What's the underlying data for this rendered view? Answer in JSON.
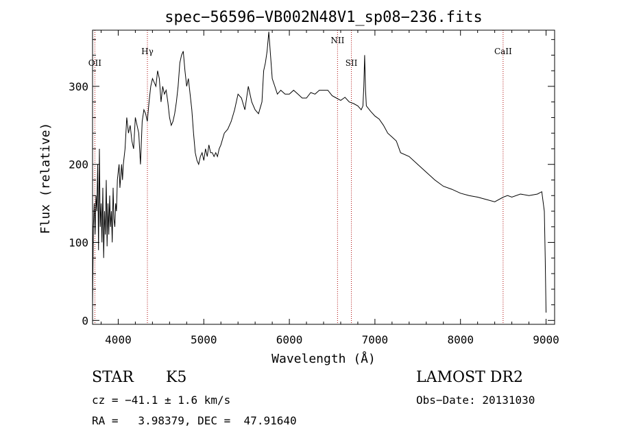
{
  "chart_data": {
    "type": "line",
    "title": "spec−56596−VB002N48V1_sp08−236.fits",
    "xlabel": "Wavelength (Å)",
    "ylabel": "Flux (relative)",
    "xlim": [
      3700,
      9100
    ],
    "ylim": [
      -5,
      372
    ],
    "xticks": [
      4000,
      5000,
      6000,
      7000,
      8000,
      9000
    ],
    "yticks": [
      0,
      100,
      200,
      300
    ],
    "line_color": "#000000",
    "marker_color": "#aa0000",
    "grid": false,
    "spectral_lines": [
      {
        "name": "OII",
        "wavelength": 3727
      },
      {
        "name": "Hγ",
        "wavelength": 4341
      },
      {
        "name": "NII",
        "wavelength": 6563
      },
      {
        "name": "SII",
        "wavelength": 6725
      },
      {
        "name": "CaII",
        "wavelength": 8498
      }
    ],
    "series": [
      {
        "x": [
          3700,
          3710,
          3720,
          3730,
          3740,
          3750,
          3760,
          3770,
          3780,
          3790,
          3800,
          3810,
          3820,
          3830,
          3840,
          3850,
          3860,
          3870,
          3880,
          3890,
          3900,
          3910,
          3920,
          3930,
          3940,
          3950,
          3960,
          3970,
          3980,
          3990,
          4000,
          4010,
          4020,
          4030,
          4040,
          4050,
          4060,
          4080,
          4100,
          4120,
          4140,
          4160,
          4180,
          4200,
          4220,
          4240,
          4260,
          4280,
          4300,
          4320,
          4340,
          4360,
          4380,
          4400,
          4420,
          4440,
          4460,
          4480,
          4500,
          4520,
          4540,
          4560,
          4580,
          4600,
          4620,
          4640,
          4660,
          4680,
          4700,
          4720,
          4740,
          4760,
          4780,
          4800,
          4820,
          4840,
          4860,
          4880,
          4900,
          4920,
          4940,
          4960,
          4980,
          5000,
          5020,
          5040,
          5060,
          5080,
          5100,
          5120,
          5140,
          5160,
          5180,
          5200,
          5240,
          5280,
          5320,
          5360,
          5400,
          5440,
          5480,
          5520,
          5560,
          5600,
          5640,
          5680,
          5700,
          5720,
          5740,
          5760,
          5780,
          5800,
          5830,
          5860,
          5900,
          5950,
          6000,
          6050,
          6100,
          6150,
          6200,
          6250,
          6300,
          6350,
          6400,
          6450,
          6500,
          6550,
          6600,
          6650,
          6700,
          6750,
          6800,
          6840,
          6860,
          6870,
          6880,
          6890,
          6900,
          6950,
          7000,
          7050,
          7100,
          7150,
          7200,
          7250,
          7300,
          7400,
          7500,
          7600,
          7650,
          7700,
          7800,
          7900,
          8000,
          8100,
          8200,
          8300,
          8400,
          8500,
          8550,
          8600,
          8700,
          8800,
          8900,
          8950,
          8980,
          8990,
          9000
        ],
        "y": [
          20,
          120,
          150,
          110,
          160,
          140,
          200,
          90,
          220,
          120,
          150,
          100,
          170,
          80,
          140,
          110,
          180,
          95,
          150,
          110,
          160,
          120,
          140,
          100,
          170,
          130,
          120,
          150,
          140,
          180,
          190,
          200,
          170,
          185,
          200,
          180,
          200,
          220,
          260,
          240,
          250,
          230,
          220,
          260,
          250,
          240,
          200,
          255,
          270,
          265,
          255,
          280,
          300,
          310,
          305,
          300,
          320,
          310,
          280,
          300,
          290,
          295,
          280,
          260,
          250,
          255,
          265,
          280,
          300,
          330,
          340,
          345,
          320,
          300,
          310,
          290,
          270,
          240,
          215,
          205,
          200,
          210,
          215,
          205,
          220,
          210,
          225,
          215,
          215,
          210,
          215,
          210,
          220,
          225,
          240,
          245,
          255,
          270,
          290,
          285,
          270,
          300,
          280,
          270,
          265,
          280,
          320,
          330,
          345,
          370,
          340,
          310,
          300,
          290,
          295,
          290,
          290,
          295,
          290,
          285,
          285,
          292,
          290,
          295,
          295,
          295,
          288,
          285,
          282,
          286,
          280,
          278,
          275,
          270,
          275,
          300,
          340,
          295,
          275,
          268,
          262,
          258,
          250,
          240,
          235,
          230,
          215,
          210,
          200,
          190,
          185,
          180,
          172,
          168,
          163,
          160,
          158,
          155,
          152,
          158,
          160,
          158,
          162,
          160,
          162,
          165,
          140,
          80,
          10
        ]
      }
    ]
  },
  "info": {
    "object_class": "STAR",
    "subclass": "K5",
    "survey": "LAMOST DR2",
    "cz": "cz = −41.1 ± 1.6 km/s",
    "obs_date": "Obs−Date: 20131030",
    "coords": "RA =   3.98379, DEC =  47.91640"
  }
}
